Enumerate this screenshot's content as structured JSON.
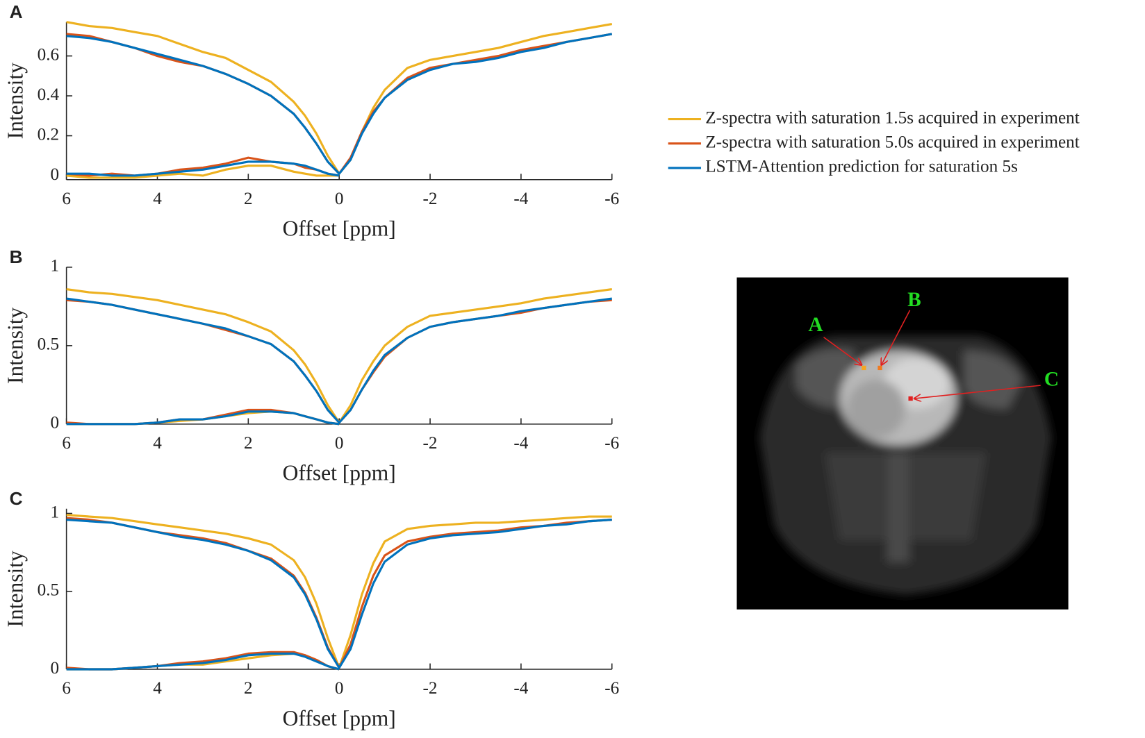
{
  "chart_data": [
    {
      "type": "line",
      "panel": "A",
      "xlabel": "Offset [ppm]",
      "ylabel": "Intensity",
      "x": [
        6,
        5.5,
        5,
        4.5,
        4,
        3.5,
        3,
        2.5,
        2,
        1.5,
        1,
        0.75,
        0.5,
        0.25,
        0,
        -0.25,
        -0.5,
        -0.75,
        -1,
        -1.5,
        -2,
        -2.5,
        -3,
        -3.5,
        -4,
        -4.5,
        -5,
        -5.5,
        -6
      ],
      "xlim": [
        6,
        -6
      ],
      "xticks": [
        6,
        4,
        2,
        0,
        -2,
        -4,
        -6
      ],
      "ylim": [
        -0.02,
        0.77
      ],
      "yticks": [
        0,
        0.2,
        0.4,
        0.6
      ],
      "series": [
        {
          "name": "Z-spectra with saturation 1.5s acquired in experiment",
          "color": "#EDB120",
          "values": [
            0.77,
            0.75,
            0.74,
            0.72,
            0.7,
            0.66,
            0.62,
            0.59,
            0.53,
            0.47,
            0.37,
            0.3,
            0.21,
            0.1,
            0.01,
            0.08,
            0.22,
            0.34,
            0.43,
            0.54,
            0.58,
            0.6,
            0.62,
            0.64,
            0.67,
            0.7,
            0.72,
            0.74,
            0.76
          ],
          "asym_values": [
            0,
            -0.01,
            -0.01,
            -0.01,
            0,
            0.01,
            0,
            0.03,
            0.05,
            0.05,
            0.02,
            0.01,
            0,
            0,
            0,
            null,
            null,
            null,
            null,
            null,
            null,
            null,
            null,
            null,
            null,
            null,
            null,
            null,
            null
          ]
        },
        {
          "name": "Z-spectra with saturation 5.0s acquired in experiment",
          "color": "#D95319",
          "values": [
            0.71,
            0.7,
            0.67,
            0.64,
            0.6,
            0.57,
            0.55,
            0.51,
            0.46,
            0.4,
            0.31,
            0.24,
            0.16,
            0.07,
            0.01,
            0.09,
            0.22,
            0.32,
            0.39,
            0.49,
            0.54,
            0.56,
            0.58,
            0.6,
            0.63,
            0.65,
            0.67,
            0.69,
            0.71
          ],
          "asym_values": [
            0.01,
            0,
            0.01,
            0,
            0.01,
            0.03,
            0.04,
            0.06,
            0.09,
            0.07,
            0.06,
            0.04,
            0.03,
            0.01,
            0,
            null,
            null,
            null,
            null,
            null,
            null,
            null,
            null,
            null,
            null,
            null,
            null,
            null,
            null
          ]
        },
        {
          "name": "LSTM-Attention prediction for saturation 5s",
          "color": "#0072BD",
          "values": [
            0.7,
            0.69,
            0.67,
            0.64,
            0.61,
            0.58,
            0.55,
            0.51,
            0.46,
            0.4,
            0.31,
            0.24,
            0.16,
            0.07,
            0.01,
            0.08,
            0.21,
            0.31,
            0.39,
            0.48,
            0.53,
            0.56,
            0.57,
            0.59,
            0.62,
            0.64,
            0.67,
            0.69,
            0.71
          ],
          "asym_values": [
            0.01,
            0.01,
            0,
            0,
            0.01,
            0.02,
            0.03,
            0.05,
            0.07,
            0.07,
            0.06,
            0.05,
            0.03,
            0.01,
            0,
            null,
            null,
            null,
            null,
            null,
            null,
            null,
            null,
            null,
            null,
            null,
            null,
            null,
            null
          ]
        }
      ]
    },
    {
      "type": "line",
      "panel": "B",
      "xlabel": "Offset [ppm]",
      "ylabel": "Intensity",
      "x": [
        6,
        5.5,
        5,
        4.5,
        4,
        3.5,
        3,
        2.5,
        2,
        1.5,
        1,
        0.75,
        0.5,
        0.25,
        0,
        -0.25,
        -0.5,
        -0.75,
        -1,
        -1.5,
        -2,
        -2.5,
        -3,
        -3.5,
        -4,
        -4.5,
        -5,
        -5.5,
        -6
      ],
      "xlim": [
        6,
        -6
      ],
      "xticks": [
        6,
        4,
        2,
        0,
        -2,
        -4,
        -6
      ],
      "ylim": [
        0,
        1
      ],
      "yticks": [
        0,
        0.5,
        1
      ],
      "series": [
        {
          "name": "Z-spectra with saturation 1.5s acquired in experiment",
          "color": "#EDB120",
          "values": [
            0.86,
            0.84,
            0.83,
            0.81,
            0.79,
            0.76,
            0.73,
            0.7,
            0.65,
            0.59,
            0.47,
            0.38,
            0.26,
            0.12,
            0.01,
            0.12,
            0.28,
            0.4,
            0.5,
            0.62,
            0.69,
            0.71,
            0.73,
            0.75,
            0.77,
            0.8,
            0.82,
            0.84,
            0.86
          ],
          "asym_values": [
            0,
            0,
            0,
            0,
            0.01,
            0.02,
            0.03,
            0.05,
            0.07,
            0.08,
            0.07,
            0.05,
            0.03,
            0.01,
            0,
            null,
            null,
            null,
            null,
            null,
            null,
            null,
            null,
            null,
            null,
            null,
            null,
            null,
            null
          ]
        },
        {
          "name": "Z-spectra with saturation 5.0s acquired in experiment",
          "color": "#D95319",
          "values": [
            0.79,
            0.78,
            0.76,
            0.73,
            0.7,
            0.67,
            0.64,
            0.6,
            0.56,
            0.51,
            0.4,
            0.31,
            0.21,
            0.09,
            0.01,
            0.09,
            0.22,
            0.33,
            0.43,
            0.55,
            0.62,
            0.65,
            0.67,
            0.69,
            0.71,
            0.74,
            0.76,
            0.78,
            0.79
          ],
          "asym_values": [
            0.01,
            0,
            0,
            0,
            0.01,
            0.03,
            0.03,
            0.06,
            0.09,
            0.09,
            0.07,
            0.05,
            0.03,
            0.01,
            0,
            null,
            null,
            null,
            null,
            null,
            null,
            null,
            null,
            null,
            null,
            null,
            null,
            null,
            null
          ]
        },
        {
          "name": "LSTM-Attention prediction for saturation 5s",
          "color": "#0072BD",
          "values": [
            0.8,
            0.78,
            0.76,
            0.73,
            0.7,
            0.67,
            0.64,
            0.61,
            0.56,
            0.51,
            0.4,
            0.31,
            0.21,
            0.09,
            0.01,
            0.09,
            0.22,
            0.34,
            0.44,
            0.55,
            0.62,
            0.65,
            0.67,
            0.69,
            0.72,
            0.74,
            0.76,
            0.78,
            0.8
          ],
          "asym_values": [
            0,
            0,
            0,
            0,
            0.01,
            0.03,
            0.03,
            0.05,
            0.08,
            0.08,
            0.07,
            0.05,
            0.03,
            0.01,
            0,
            null,
            null,
            null,
            null,
            null,
            null,
            null,
            null,
            null,
            null,
            null,
            null,
            null,
            null
          ]
        }
      ]
    },
    {
      "type": "line",
      "panel": "C",
      "xlabel": "Offset [ppm]",
      "ylabel": "Intensity",
      "x": [
        6,
        5.5,
        5,
        4.5,
        4,
        3.5,
        3,
        2.5,
        2,
        1.5,
        1,
        0.75,
        0.5,
        0.25,
        0,
        -0.25,
        -0.5,
        -0.75,
        -1,
        -1.5,
        -2,
        -2.5,
        -3,
        -3.5,
        -4,
        -4.5,
        -5,
        -5.5,
        -6
      ],
      "xlim": [
        6,
        -6
      ],
      "xticks": [
        6,
        4,
        2,
        0,
        -2,
        -4,
        -6
      ],
      "ylim": [
        0,
        1.03
      ],
      "yticks": [
        0,
        0.5,
        1
      ],
      "series": [
        {
          "name": "Z-spectra with saturation 1.5s acquired in experiment",
          "color": "#EDB120",
          "values": [
            0.99,
            0.98,
            0.97,
            0.95,
            0.93,
            0.91,
            0.89,
            0.87,
            0.84,
            0.8,
            0.7,
            0.59,
            0.42,
            0.2,
            0.01,
            0.22,
            0.48,
            0.68,
            0.82,
            0.9,
            0.92,
            0.93,
            0.94,
            0.94,
            0.95,
            0.96,
            0.97,
            0.98,
            0.98
          ],
          "asym_values": [
            0,
            0,
            0,
            0.01,
            0.02,
            0.03,
            0.03,
            0.05,
            0.07,
            0.09,
            0.1,
            0.09,
            0.06,
            0.02,
            0,
            null,
            null,
            null,
            null,
            null,
            null,
            null,
            null,
            null,
            null,
            null,
            null,
            null,
            null
          ]
        },
        {
          "name": "Z-spectra with saturation 5.0s acquired in experiment",
          "color": "#D95319",
          "values": [
            0.97,
            0.96,
            0.94,
            0.91,
            0.88,
            0.86,
            0.84,
            0.81,
            0.76,
            0.71,
            0.6,
            0.49,
            0.33,
            0.14,
            0.01,
            0.16,
            0.4,
            0.6,
            0.73,
            0.82,
            0.85,
            0.87,
            0.88,
            0.89,
            0.91,
            0.92,
            0.94,
            0.95,
            0.96
          ],
          "asym_values": [
            0.01,
            0,
            0,
            0.01,
            0.02,
            0.04,
            0.05,
            0.07,
            0.1,
            0.11,
            0.11,
            0.09,
            0.06,
            0.02,
            0,
            null,
            null,
            null,
            null,
            null,
            null,
            null,
            null,
            null,
            null,
            null,
            null,
            null,
            null
          ]
        },
        {
          "name": "LSTM-Attention prediction for saturation 5s",
          "color": "#0072BD",
          "values": [
            0.96,
            0.95,
            0.94,
            0.91,
            0.88,
            0.85,
            0.83,
            0.8,
            0.76,
            0.7,
            0.59,
            0.48,
            0.32,
            0.13,
            0.01,
            0.13,
            0.35,
            0.55,
            0.69,
            0.8,
            0.84,
            0.86,
            0.87,
            0.88,
            0.9,
            0.92,
            0.93,
            0.95,
            0.96
          ],
          "asym_values": [
            0,
            0,
            0,
            0.01,
            0.02,
            0.03,
            0.04,
            0.06,
            0.09,
            0.1,
            0.1,
            0.08,
            0.05,
            0.02,
            0,
            null,
            null,
            null,
            null,
            null,
            null,
            null,
            null,
            null,
            null,
            null,
            null,
            null,
            null
          ]
        }
      ]
    }
  ],
  "image": {
    "labels": [
      "A",
      "B",
      "C"
    ]
  }
}
